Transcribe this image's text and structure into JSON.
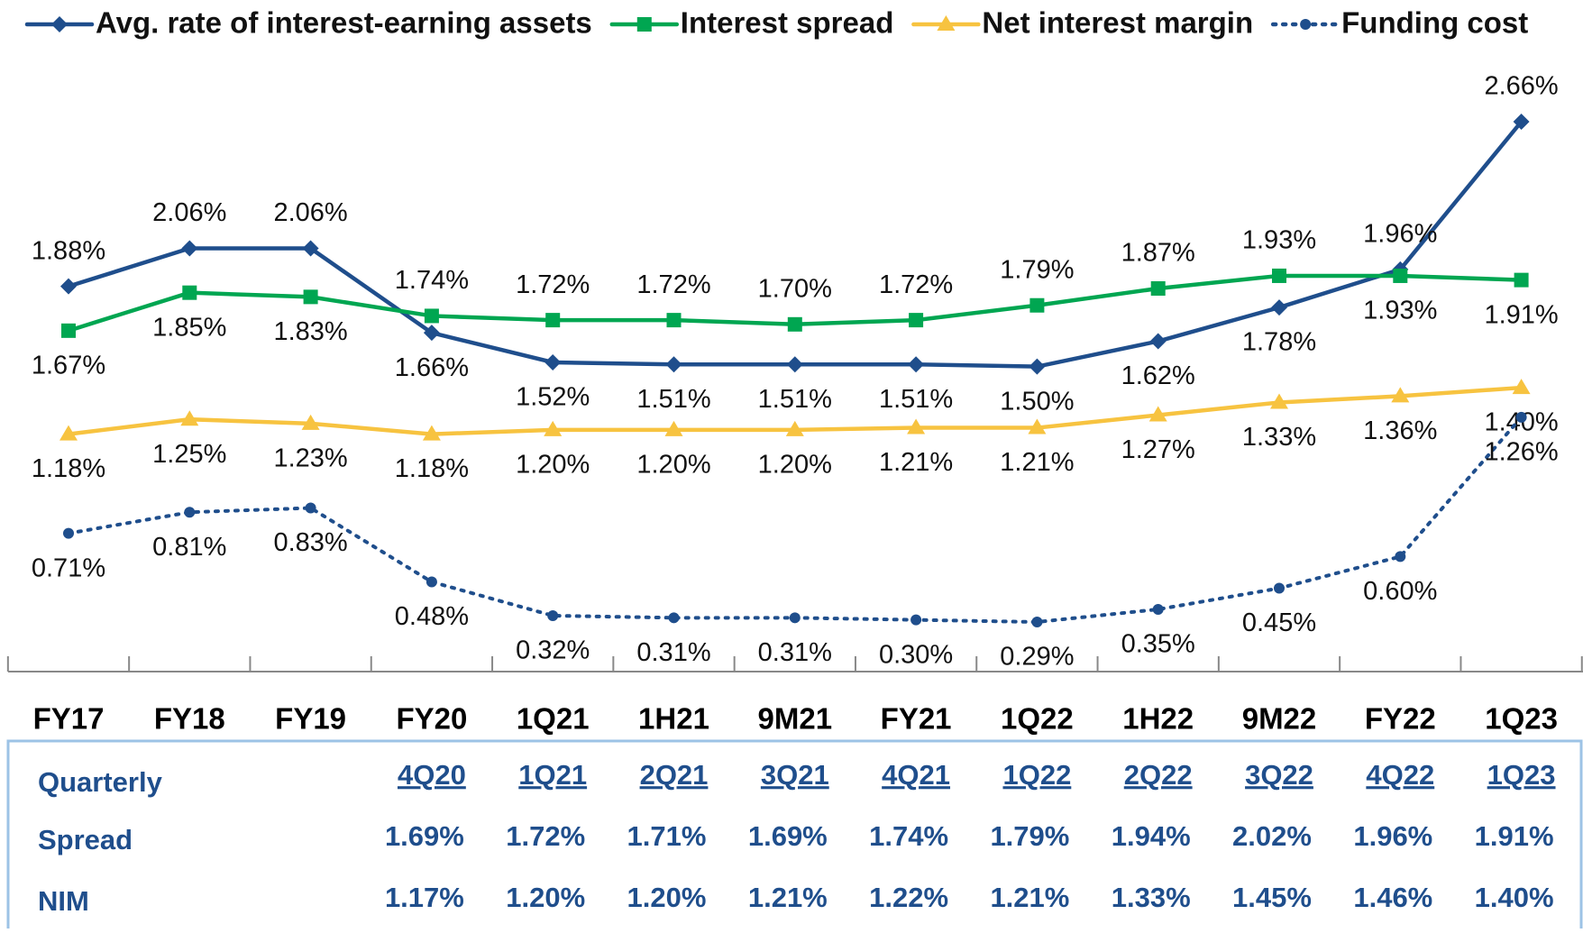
{
  "chart_data": {
    "type": "line",
    "categories": [
      "FY17",
      "FY18",
      "FY19",
      "FY20",
      "1Q21",
      "1H21",
      "9M21",
      "FY21",
      "1Q22",
      "1H22",
      "9M22",
      "FY22",
      "1Q23"
    ],
    "series": [
      {
        "name": "Avg. rate of interest-earning assets",
        "color": "#1f4e8c",
        "marker": "diamond",
        "dash": "solid",
        "values": [
          1.88,
          2.06,
          2.06,
          1.66,
          1.52,
          1.51,
          1.51,
          1.51,
          1.5,
          1.62,
          1.78,
          1.96,
          2.66
        ],
        "value_labels": [
          "1.88%",
          "2.06%",
          "2.06%",
          "1.66%",
          "1.52%",
          "1.51%",
          "1.51%",
          "1.51%",
          "1.50%",
          "1.62%",
          "1.78%",
          "1.96%",
          "2.66%"
        ]
      },
      {
        "name": "Interest spread",
        "color": "#00a651",
        "marker": "square",
        "dash": "solid",
        "values": [
          1.67,
          1.85,
          1.83,
          1.74,
          1.72,
          1.72,
          1.7,
          1.72,
          1.79,
          1.87,
          1.93,
          1.93,
          1.91
        ],
        "value_labels": [
          "1.67%",
          "1.85%",
          "1.83%",
          "1.74%",
          "1.72%",
          "1.72%",
          "1.70%",
          "1.72%",
          "1.79%",
          "1.87%",
          "1.93%",
          "1.93%",
          "1.91%"
        ]
      },
      {
        "name": "Net interest margin",
        "color": "#f7c340",
        "marker": "triangle",
        "dash": "solid",
        "values": [
          1.18,
          1.25,
          1.23,
          1.18,
          1.2,
          1.2,
          1.2,
          1.21,
          1.21,
          1.27,
          1.33,
          1.36,
          1.4
        ],
        "value_labels": [
          "1.18%",
          "1.25%",
          "1.23%",
          "1.18%",
          "1.20%",
          "1.20%",
          "1.20%",
          "1.21%",
          "1.21%",
          "1.27%",
          "1.33%",
          "1.36%",
          "1.40%"
        ]
      },
      {
        "name": "Funding cost",
        "color": "#1f4e8c",
        "marker": "circle",
        "dash": "dotted",
        "values": [
          0.71,
          0.81,
          0.83,
          0.48,
          0.32,
          0.31,
          0.31,
          0.3,
          0.29,
          0.35,
          0.45,
          0.6,
          1.26
        ],
        "value_labels": [
          "0.71%",
          "0.81%",
          "0.83%",
          "0.48%",
          "0.32%",
          "0.31%",
          "0.31%",
          "0.30%",
          "0.29%",
          "0.35%",
          "0.45%",
          "0.60%",
          "1.26%"
        ]
      }
    ],
    "legend": "top"
  },
  "quarterly_table": {
    "header": "Quarterly",
    "columns": [
      "4Q20",
      "1Q21",
      "2Q21",
      "3Q21",
      "4Q21",
      "1Q22",
      "2Q22",
      "3Q22",
      "4Q22",
      "1Q23"
    ],
    "rows": [
      {
        "label": "Spread",
        "values": [
          "1.69%",
          "1.72%",
          "1.71%",
          "1.69%",
          "1.74%",
          "1.79%",
          "1.94%",
          "2.02%",
          "1.96%",
          "1.91%"
        ]
      },
      {
        "label": "NIM",
        "values": [
          "1.17%",
          "1.20%",
          "1.20%",
          "1.21%",
          "1.22%",
          "1.21%",
          "1.33%",
          "1.45%",
          "1.46%",
          "1.40%"
        ]
      }
    ]
  }
}
